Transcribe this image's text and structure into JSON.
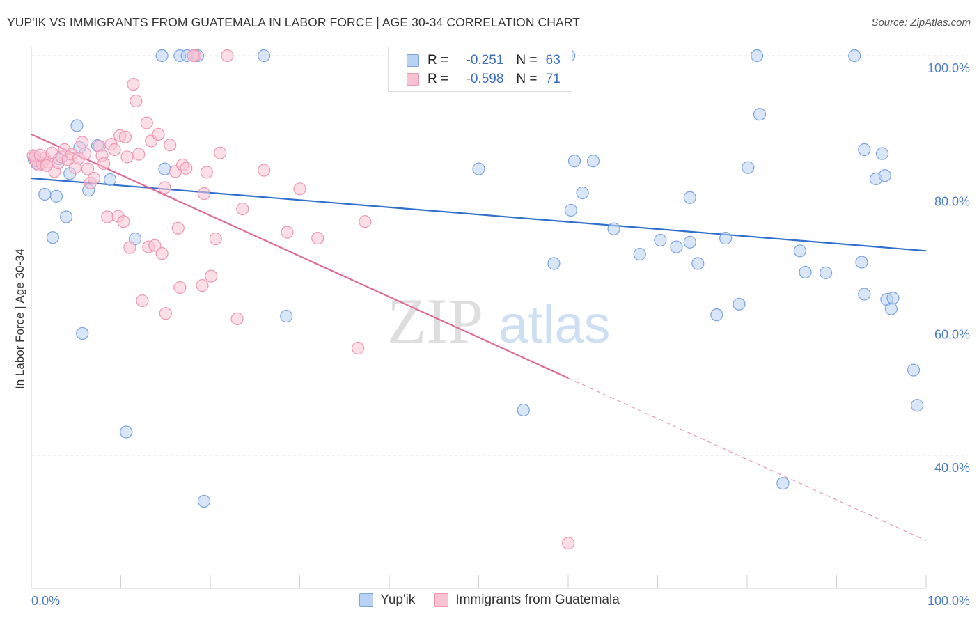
{
  "title": "YUP'IK VS IMMIGRANTS FROM GUATEMALA IN LABOR FORCE | AGE 30-34 CORRELATION CHART",
  "source": "Source: ZipAtlas.com",
  "watermark": {
    "zip": "ZIP",
    "atlas": "atlas"
  },
  "legend": {
    "rows": [
      {
        "r_label": "R =",
        "r_value": "-0.251",
        "n_label": "N =",
        "n_value": "63"
      },
      {
        "r_label": "R =",
        "r_value": "-0.598",
        "n_label": "N =",
        "n_value": "71"
      }
    ]
  },
  "colors": {
    "blue_fill": "#b9d1f3",
    "blue_stroke": "#7aa3e0",
    "blue_line": "#2f6fce",
    "pink_fill": "#f9c3d4",
    "pink_stroke": "#ee97b3",
    "pink_line": "#e06a97",
    "tick_text": "#4a7cc9",
    "grid": "#e2e2e2"
  },
  "chart_data": {
    "type": "scatter",
    "title": "YUP'IK VS IMMIGRANTS FROM GUATEMALA IN LABOR FORCE | AGE 30-34 CORRELATION CHART",
    "xlabel": "",
    "ylabel": "In Labor Force | Age 30-34",
    "xlim": [
      0,
      100
    ],
    "ylim": [
      22.5,
      102
    ],
    "x_tick_labels": [
      "0.0%",
      "100.0%"
    ],
    "y_ticks": [
      40,
      60,
      80,
      100
    ],
    "y_tick_labels": [
      "40.0%",
      "60.0%",
      "80.0%",
      "100.0%"
    ],
    "grid": true,
    "legend_position": "bottom",
    "series": [
      {
        "name": "Yup'ik",
        "r": -0.251,
        "n": 63,
        "trend": {
          "x": [
            0,
            100
          ],
          "y": [
            81.6,
            70.7
          ],
          "dashed_from": null
        },
        "points": [
          [
            0.3,
            84.5
          ],
          [
            0.6,
            83.8
          ],
          [
            1.5,
            79.2
          ],
          [
            2.4,
            72.7
          ],
          [
            2.8,
            78.9
          ],
          [
            3.1,
            84.5
          ],
          [
            3.9,
            75.8
          ],
          [
            4.3,
            82.3
          ],
          [
            5.1,
            89.5
          ],
          [
            5.4,
            86.2
          ],
          [
            5.7,
            58.3
          ],
          [
            6.4,
            79.8
          ],
          [
            7.4,
            86.5
          ],
          [
            8.8,
            81.4
          ],
          [
            10.6,
            43.5
          ],
          [
            11.6,
            72.5
          ],
          [
            14.6,
            100
          ],
          [
            14.9,
            83.0
          ],
          [
            16.6,
            100
          ],
          [
            17.4,
            100
          ],
          [
            18.6,
            100
          ],
          [
            19.3,
            33.1
          ],
          [
            26.0,
            100
          ],
          [
            28.5,
            60.9
          ],
          [
            41.3,
            100
          ],
          [
            50.0,
            83.0
          ],
          [
            55.0,
            46.8
          ],
          [
            58.4,
            68.8
          ],
          [
            60.1,
            100
          ],
          [
            60.3,
            76.8
          ],
          [
            60.7,
            84.2
          ],
          [
            61.6,
            79.4
          ],
          [
            62.8,
            84.2
          ],
          [
            65.1,
            74.0
          ],
          [
            68.0,
            70.2
          ],
          [
            70.3,
            72.3
          ],
          [
            72.1,
            71.3
          ],
          [
            73.6,
            72.0
          ],
          [
            73.6,
            78.7
          ],
          [
            74.5,
            68.8
          ],
          [
            76.6,
            61.1
          ],
          [
            77.6,
            72.6
          ],
          [
            79.1,
            62.7
          ],
          [
            80.1,
            83.2
          ],
          [
            81.1,
            100
          ],
          [
            81.4,
            91.2
          ],
          [
            84.0,
            35.8
          ],
          [
            85.9,
            70.7
          ],
          [
            86.5,
            67.5
          ],
          [
            88.8,
            67.4
          ],
          [
            92.0,
            100
          ],
          [
            92.8,
            69.0
          ],
          [
            93.1,
            64.2
          ],
          [
            93.1,
            85.9
          ],
          [
            94.4,
            81.5
          ],
          [
            95.1,
            85.3
          ],
          [
            95.4,
            82.0
          ],
          [
            95.6,
            63.4
          ],
          [
            96.1,
            62.0
          ],
          [
            96.3,
            63.6
          ],
          [
            98.6,
            52.8
          ],
          [
            99.0,
            47.5
          ],
          [
            42.5,
            100
          ]
        ]
      },
      {
        "name": "Immigrants from Guatemala",
        "r": -0.598,
        "n": 71,
        "trend": {
          "x": [
            0,
            100
          ],
          "y": [
            88.2,
            27.2
          ],
          "dashed_from": 60
        },
        "points": [
          [
            0.2,
            85.0
          ],
          [
            0.5,
            84.2
          ],
          [
            0.8,
            83.6
          ],
          [
            1.2,
            83.8
          ],
          [
            1.5,
            84.6
          ],
          [
            1.9,
            84.0
          ],
          [
            2.3,
            85.4
          ],
          [
            2.6,
            82.6
          ],
          [
            3.0,
            83.9
          ],
          [
            3.4,
            84.8
          ],
          [
            3.7,
            85.9
          ],
          [
            4.1,
            84.4
          ],
          [
            4.5,
            85.2
          ],
          [
            4.9,
            83.2
          ],
          [
            5.3,
            84.6
          ],
          [
            5.7,
            87.0
          ],
          [
            6.0,
            85.3
          ],
          [
            6.3,
            83.0
          ],
          [
            6.6,
            80.9
          ],
          [
            7.0,
            81.6
          ],
          [
            7.6,
            86.4
          ],
          [
            7.9,
            85.0
          ],
          [
            8.1,
            83.8
          ],
          [
            8.5,
            75.8
          ],
          [
            8.9,
            86.7
          ],
          [
            9.3,
            85.9
          ],
          [
            9.7,
            75.9
          ],
          [
            9.9,
            88.0
          ],
          [
            10.3,
            75.1
          ],
          [
            10.5,
            87.8
          ],
          [
            10.7,
            84.8
          ],
          [
            11.0,
            71.2
          ],
          [
            11.4,
            95.7
          ],
          [
            11.7,
            93.2
          ],
          [
            12.0,
            85.2
          ],
          [
            12.4,
            63.2
          ],
          [
            12.9,
            89.9
          ],
          [
            13.1,
            71.3
          ],
          [
            13.4,
            87.2
          ],
          [
            13.8,
            71.5
          ],
          [
            14.2,
            88.2
          ],
          [
            14.6,
            70.3
          ],
          [
            14.9,
            80.2
          ],
          [
            15.0,
            61.3
          ],
          [
            15.5,
            86.6
          ],
          [
            16.1,
            82.6
          ],
          [
            16.4,
            74.1
          ],
          [
            16.6,
            65.2
          ],
          [
            16.9,
            83.6
          ],
          [
            17.3,
            83.1
          ],
          [
            18.3,
            100
          ],
          [
            19.1,
            65.5
          ],
          [
            19.3,
            79.3
          ],
          [
            19.6,
            82.5
          ],
          [
            20.1,
            66.9
          ],
          [
            20.6,
            72.5
          ],
          [
            21.1,
            85.4
          ],
          [
            23.0,
            60.5
          ],
          [
            23.6,
            77.0
          ],
          [
            26.0,
            82.8
          ],
          [
            28.6,
            73.5
          ],
          [
            30.0,
            80.0
          ],
          [
            32.0,
            72.6
          ],
          [
            36.5,
            56.1
          ],
          [
            37.3,
            75.1
          ],
          [
            60.0,
            26.8
          ],
          [
            21.9,
            100
          ],
          [
            18.1,
            100
          ],
          [
            0.4,
            84.9
          ],
          [
            1.0,
            85.1
          ],
          [
            1.7,
            83.5
          ]
        ]
      }
    ]
  }
}
